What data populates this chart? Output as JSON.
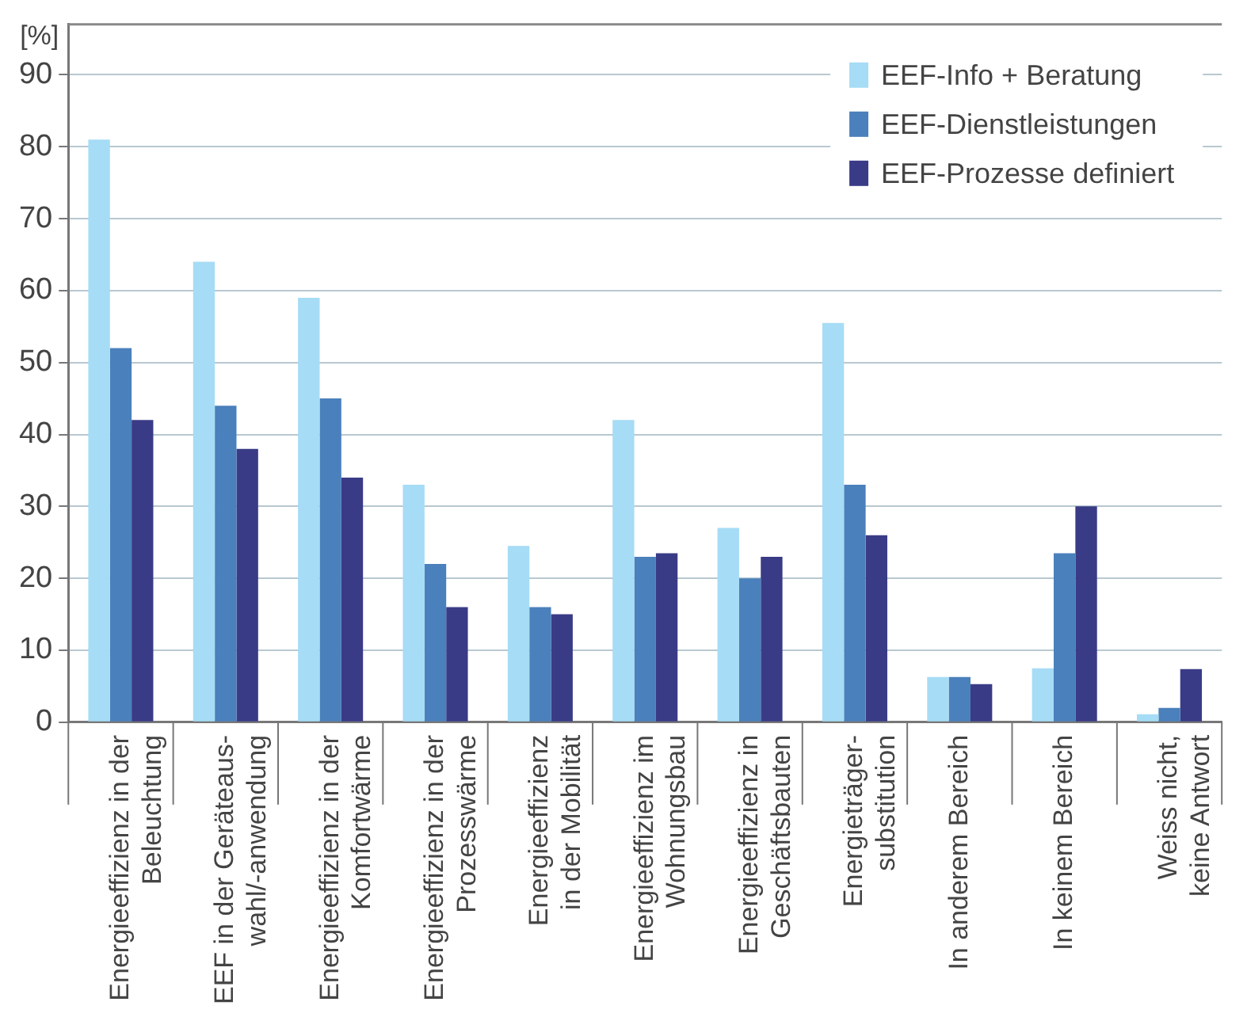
{
  "chart_data": {
    "type": "bar",
    "ylabel": "[%]",
    "categories": [
      "Energieeffizienz in der\nBeleuchtung",
      "EEF in der Geräteaus-\nwahl/-anwendung",
      "Energieeffizienz in der\nKomfortwärme",
      "Energieeffizienz in der\nProzesswärme",
      "Energieeffizienz\nin der Mobilität",
      "Energieeffizienz im\nWohnungsbau",
      "Energieeffizienz in\nGeschäftsbauten",
      "Energieträger-\nsubstitution",
      "In anderem Bereich",
      "In keinem Bereich",
      "Weiss nicht,\nkeine Antwort"
    ],
    "series": [
      {
        "name": "EEF-Info + Beratung",
        "color": "#a6dcf5",
        "values": [
          81,
          64,
          59,
          33,
          24.5,
          42,
          27,
          55.5,
          6.3,
          7.5,
          1.1
        ]
      },
      {
        "name": "EEF-Dienstleistungen",
        "color": "#4a80bb",
        "values": [
          52,
          44,
          45,
          22,
          16,
          23,
          20,
          33,
          6.3,
          23.5,
          2
        ]
      },
      {
        "name": "EEF-Prozesse definiert",
        "color": "#3a3b86",
        "values": [
          42,
          38,
          34,
          16,
          15,
          23.5,
          23,
          26,
          5.3,
          30,
          7.4
        ]
      }
    ],
    "ylim": [
      0,
      97
    ],
    "yticks": [
      0,
      10,
      20,
      30,
      40,
      50,
      60,
      70,
      80,
      90
    ],
    "grid": "y",
    "legend": "top right"
  }
}
